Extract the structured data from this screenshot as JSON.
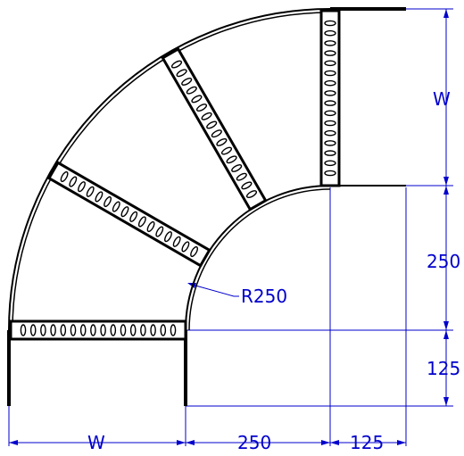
{
  "colors": {
    "outline": "#000000",
    "dimension": "#0000cc",
    "background": "#ffffff"
  },
  "labels": {
    "width_top_right": "W",
    "inner_radius_vertical": "250",
    "offset_vertical": "125",
    "width_bottom": "W",
    "inner_radius_horizontal": "250",
    "offset_horizontal": "125",
    "radius_callout": "R250"
  }
}
